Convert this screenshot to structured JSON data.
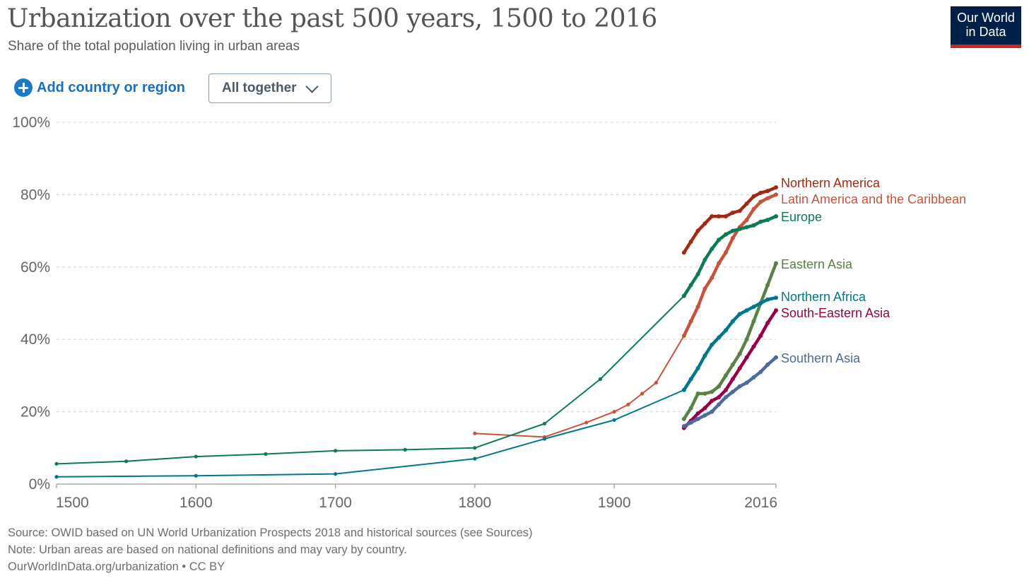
{
  "header": {
    "title": "Urbanization over the past 500 years, 1500 to 2016",
    "subtitle": "Share of the total population living in urban areas",
    "logo_line1": "Our World",
    "logo_line2": "in Data"
  },
  "controls": {
    "add_label": "Add country or region",
    "dropdown_value": "All together"
  },
  "footer": {
    "source": "Source: OWID based on UN World Urbanization Prospects 2018 and historical sources (see Sources)",
    "note": "Note: Urban areas are based on national definitions and may vary by country.",
    "url": "OurWorldInData.org/urbanization • CC BY"
  },
  "chart_data": {
    "type": "line",
    "title": "Urbanization over the past 500 years, 1500 to 2016",
    "subtitle": "Share of the total population living in urban areas",
    "xlim": [
      1500,
      2016
    ],
    "ylim": [
      0,
      100
    ],
    "x_ticks": [
      {
        "value": 1500,
        "label": "1500"
      },
      {
        "value": 1600,
        "label": "1600"
      },
      {
        "value": 1700,
        "label": "1700"
      },
      {
        "value": 1800,
        "label": "1800"
      },
      {
        "value": 1900,
        "label": "1900"
      },
      {
        "value": 2016,
        "label": "2016"
      }
    ],
    "y_ticks": [
      {
        "value": 0,
        "label": "0%"
      },
      {
        "value": 20,
        "label": "20%"
      },
      {
        "value": 40,
        "label": "40%"
      },
      {
        "value": 60,
        "label": "60%"
      },
      {
        "value": 80,
        "label": "80%"
      },
      {
        "value": 100,
        "label": "100%"
      }
    ],
    "grid": true,
    "legend": "line-end labels",
    "series": [
      {
        "name": "Northern America",
        "color": "#a2290f",
        "x": [
          1950,
          1955,
          1960,
          1965,
          1970,
          1975,
          1980,
          1985,
          1990,
          1995,
          2000,
          2005,
          2010,
          2016
        ],
        "y": [
          64,
          67,
          70,
          72,
          74,
          74,
          74,
          75,
          75.5,
          77.5,
          79.5,
          80.5,
          81,
          82
        ]
      },
      {
        "name": "Latin America and the Caribbean",
        "color": "#c6543c",
        "x": [
          1800,
          1850,
          1880,
          1900,
          1910,
          1920,
          1930,
          1950,
          1955,
          1960,
          1965,
          1970,
          1975,
          1980,
          1985,
          1990,
          1995,
          2000,
          2005,
          2010,
          2016
        ],
        "y": [
          14,
          13,
          17,
          20,
          22,
          25,
          28,
          41,
          45,
          49,
          54,
          57,
          61,
          64,
          68,
          71,
          73,
          76,
          78,
          79,
          80
        ]
      },
      {
        "name": "Europe",
        "color": "#0c7a53",
        "x": [
          1500,
          1550,
          1600,
          1650,
          1700,
          1750,
          1800,
          1850,
          1890,
          1950,
          1955,
          1960,
          1965,
          1970,
          1975,
          1980,
          1985,
          1990,
          1995,
          2000,
          2005,
          2010,
          2016
        ],
        "y": [
          5.6,
          6.3,
          7.6,
          8.3,
          9.2,
          9.5,
          10,
          16.7,
          29,
          52,
          55,
          58,
          62,
          65,
          67.5,
          69,
          70,
          70.5,
          71,
          71.5,
          72.5,
          73,
          74
        ]
      },
      {
        "name": "Eastern Asia",
        "color": "#578145",
        "x": [
          1950,
          1955,
          1960,
          1965,
          1970,
          1975,
          1980,
          1985,
          1990,
          1995,
          2000,
          2005,
          2010,
          2016
        ],
        "y": [
          18,
          21,
          25,
          25,
          25.5,
          27,
          30,
          33,
          36,
          40,
          45,
          50,
          55,
          61
        ]
      },
      {
        "name": "Northern Africa",
        "color": "#00778d",
        "x": [
          1500,
          1600,
          1700,
          1800,
          1850,
          1900,
          1950,
          1955,
          1960,
          1965,
          1970,
          1975,
          1980,
          1985,
          1990,
          1995,
          2000,
          2005,
          2010,
          2016
        ],
        "y": [
          2,
          2.3,
          2.8,
          7,
          12.5,
          17.7,
          26,
          29,
          32,
          35.5,
          38.5,
          40.5,
          42.5,
          45,
          47,
          48,
          49,
          50,
          51,
          51.5
        ]
      },
      {
        "name": "South-Eastern Asia",
        "color": "#970046",
        "x": [
          1950,
          1955,
          1960,
          1965,
          1970,
          1975,
          1980,
          1985,
          1990,
          1995,
          2000,
          2005,
          2010,
          2016
        ],
        "y": [
          15.5,
          17.5,
          19.5,
          21,
          23,
          24,
          26,
          29,
          32,
          35,
          38,
          41,
          44.5,
          48
        ]
      },
      {
        "name": "Southern Asia",
        "color": "#4c6a9c",
        "x": [
          1950,
          1955,
          1960,
          1965,
          1970,
          1975,
          1980,
          1985,
          1990,
          1995,
          2000,
          2005,
          2010,
          2016
        ],
        "y": [
          16,
          17,
          18,
          19,
          20,
          22,
          24,
          25.5,
          27,
          28,
          29.5,
          31,
          33,
          35
        ]
      }
    ]
  }
}
